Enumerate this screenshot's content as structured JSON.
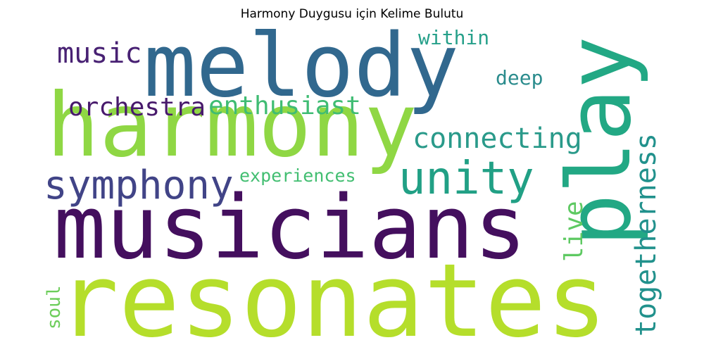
{
  "title": "Harmony Duygusu için Kelime Bulutu",
  "words": {
    "resonates": {
      "text": "resonates",
      "color": "#b5de2b"
    },
    "musicians": {
      "text": "musicians",
      "color": "#440f5e"
    },
    "harmony": {
      "text": "harmony",
      "color": "#8fd744"
    },
    "melody": {
      "text": "melody",
      "color": "#31688e"
    },
    "play": {
      "text": "play",
      "color": "#22a884"
    },
    "symphony": {
      "text": "symphony",
      "color": "#414487"
    },
    "unity": {
      "text": "unity",
      "color": "#21a085"
    },
    "connecting": {
      "text": "connecting",
      "color": "#2a9a8a"
    },
    "enthusiast": {
      "text": "enthusiast",
      "color": "#3fbc73"
    },
    "orchestra": {
      "text": "orchestra",
      "color": "#481a6c"
    },
    "music": {
      "text": "music",
      "color": "#482173"
    },
    "within": {
      "text": "within",
      "color": "#26a08a"
    },
    "deep": {
      "text": "deep",
      "color": "#2b8c8d"
    },
    "togetherness": {
      "text": "togetherness",
      "color": "#21918c"
    },
    "experiences": {
      "text": "experiences",
      "color": "#42be71"
    },
    "live": {
      "text": "live",
      "color": "#5ec962"
    },
    "soul": {
      "text": "soul",
      "color": "#6ccd5a"
    }
  }
}
